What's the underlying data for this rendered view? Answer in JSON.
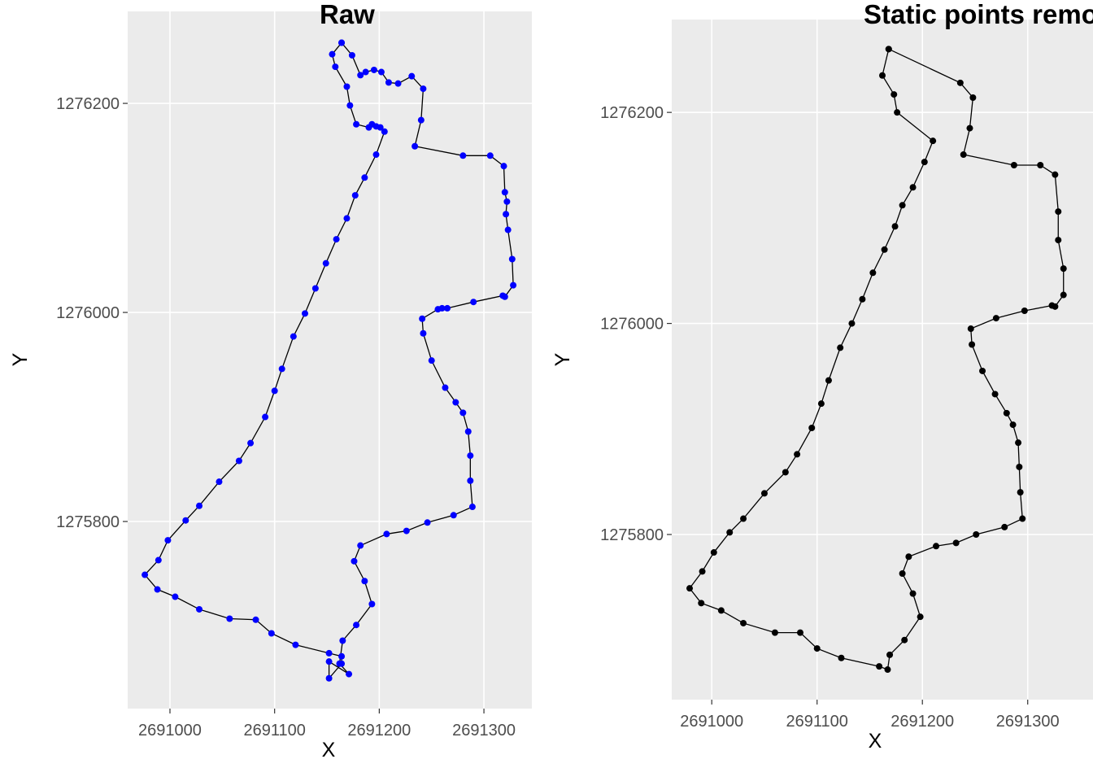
{
  "chart_data": [
    {
      "type": "line",
      "title": "Raw",
      "x_label": "X",
      "y_label": "Y",
      "xlim": [
        2690959.6,
        2691345.8
      ],
      "ylim": [
        1275621,
        1276288
      ],
      "xticks": [
        2691000,
        2691100,
        2691200,
        2691300
      ],
      "yticks": [
        1275800,
        1276000,
        1276200
      ],
      "grid": true,
      "x": [
        2691164,
        2691155,
        2691158,
        2691169,
        2691172,
        2691178,
        2691190,
        2691193,
        2691197,
        2691201,
        2691205,
        2691197,
        2691186,
        2691177,
        2691169,
        2691159,
        2691149,
        2691139,
        2691129,
        2691118,
        2691107,
        2691100,
        2691091,
        2691077,
        2691066,
        2691047,
        2691028,
        2691015,
        2690998,
        2690989,
        2690976,
        2690988,
        2691005,
        2691028,
        2691057,
        2691082,
        2691097,
        2691120,
        2691152,
        2691164,
        2691164,
        2691152,
        2691152,
        2691171,
        2691162,
        2691165,
        2691178,
        2691193,
        2691186,
        2691176,
        2691182,
        2691207,
        2691226,
        2691246,
        2691271,
        2691289,
        2691287,
        2691287,
        2691285,
        2691280,
        2691273,
        2691263,
        2691250,
        2691242,
        2691241,
        2691256,
        2691260,
        2691265,
        2691290,
        2691318,
        2691320,
        2691328,
        2691327,
        2691323,
        2691321,
        2691322,
        2691320,
        2691319,
        2691306,
        2691280,
        2691234,
        2691240,
        2691242,
        2691231,
        2691218,
        2691209,
        2691202,
        2691195,
        2691187,
        2691182,
        2691174,
        2691164
      ],
      "series": [
        {
          "color": "#0000ff",
          "line_color": "#000000",
          "values": [
            1276258,
            1276247,
            1276235,
            1276216,
            1276198,
            1276180,
            1276177,
            1276180,
            1276178,
            1276177,
            1276173,
            1276151,
            1276129,
            1276112,
            1276090,
            1276070,
            1276047,
            1276023,
            1275999,
            1275977,
            1275946,
            1275925,
            1275900,
            1275875,
            1275858,
            1275838,
            1275815,
            1275801,
            1275782,
            1275763,
            1275749,
            1275735,
            1275728,
            1275716,
            1275707,
            1275706,
            1275693,
            1275682,
            1275674,
            1275671,
            1275664,
            1275650,
            1275666,
            1275654,
            1275664,
            1275686,
            1275701,
            1275721,
            1275743,
            1275762,
            1275777,
            1275788,
            1275791,
            1275799,
            1275806,
            1275814,
            1275839,
            1275863,
            1275886,
            1275904,
            1275914,
            1275928,
            1275954,
            1275980,
            1275994,
            1276003,
            1276004,
            1276004,
            1276010,
            1276016,
            1276015,
            1276026,
            1276051,
            1276079,
            1276094,
            1276106,
            1276115,
            1276140,
            1276150,
            1276150,
            1276159,
            1276184,
            1276214,
            1276226,
            1276219,
            1276220,
            1276230,
            1276232,
            1276230,
            1276227,
            1276246,
            1276258
          ]
        }
      ]
    },
    {
      "type": "line",
      "title": "Static points removed",
      "x_label": "X",
      "y_label": "Y",
      "xlim": [
        2690962,
        2691362
      ],
      "ylim": [
        1275643.5,
        1276288
      ],
      "xticks": [
        2691000,
        2691100,
        2691200,
        2691300
      ],
      "yticks": [
        1275800,
        1276000,
        1276200
      ],
      "grid": true,
      "x": [
        2691168,
        2691162,
        2691173,
        2691176,
        2691210,
        2691202,
        2691191,
        2691181,
        2691174,
        2691164,
        2691153,
        2691143,
        2691133,
        2691122,
        2691111,
        2691104,
        2691095,
        2691081,
        2691070,
        2691050,
        2691030,
        2691017,
        2691002,
        2690991,
        2690979,
        2690990,
        2691009,
        2691030,
        2691060,
        2691084,
        2691100,
        2691123,
        2691159,
        2691167,
        2691169,
        2691183,
        2691198,
        2691191,
        2691181,
        2691187,
        2691213,
        2691232,
        2691251,
        2691278,
        2691295,
        2691293,
        2691292,
        2691291,
        2691286,
        2691280,
        2691269,
        2691257,
        2691247,
        2691246,
        2691270,
        2691297,
        2691323,
        2691326,
        2691334,
        2691334,
        2691329,
        2691329,
        2691326,
        2691312,
        2691287,
        2691239,
        2691245,
        2691248,
        2691236,
        2691168
      ],
      "series": [
        {
          "color": "#000000",
          "line_color": "#000000",
          "values": [
            1276260,
            1276235,
            1276217,
            1276200,
            1276173,
            1276153,
            1276129,
            1276112,
            1276092,
            1276070,
            1276048,
            1276023,
            1276000,
            1275977,
            1275946,
            1275924,
            1275901,
            1275876,
            1275859,
            1275839,
            1275815,
            1275802,
            1275783,
            1275765,
            1275749,
            1275735,
            1275728,
            1275716,
            1275707,
            1275707,
            1275692,
            1275683,
            1275675,
            1275672,
            1275686,
            1275700,
            1275722,
            1275744,
            1275763,
            1275779,
            1275789,
            1275792,
            1275800,
            1275807,
            1275815,
            1275840,
            1275864,
            1275887,
            1275904,
            1275915,
            1275933,
            1275955,
            1275980,
            1275995,
            1276005,
            1276012,
            1276017,
            1276016,
            1276027,
            1276052,
            1276079,
            1276106,
            1276141,
            1276150,
            1276150,
            1276160,
            1276185,
            1276214,
            1276228,
            1276260
          ]
        }
      ]
    }
  ]
}
